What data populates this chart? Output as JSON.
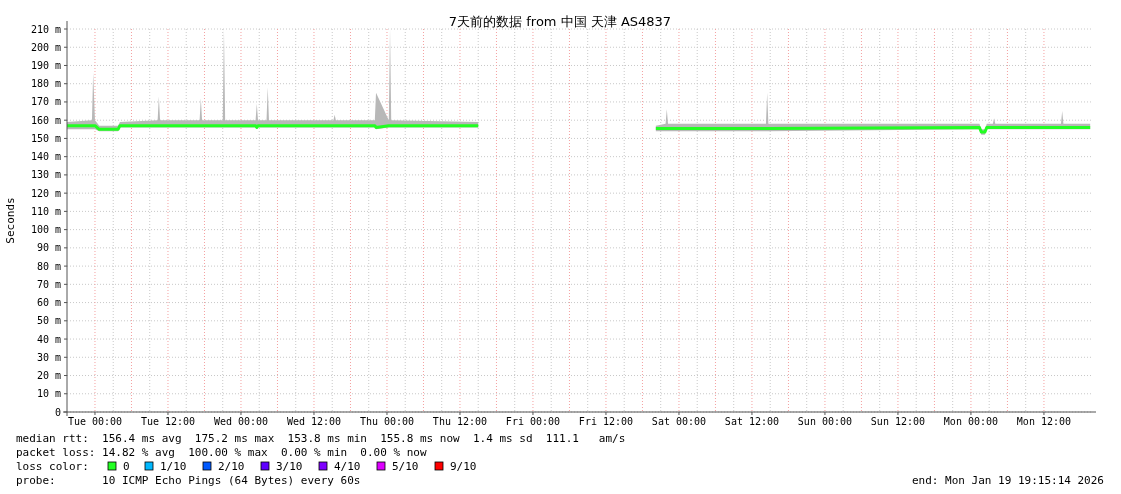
{
  "chart_data": {
    "type": "line",
    "title": "7天前的数据 from 中国 天津 AS4837",
    "ylabel": "Seconds",
    "x": [
      "2026-01-12T19:24",
      "2026-01-12T23:30",
      "2026-01-12T23:42",
      "2026-01-13T00:00",
      "2026-01-13T00:42",
      "2026-01-13T03:48",
      "2026-01-13T04:06",
      "2026-01-13T10:18",
      "2026-01-13T10:30",
      "2026-01-13T10:42",
      "2026-01-13T17:12",
      "2026-01-13T17:24",
      "2026-01-13T17:36",
      "2026-01-13T21:00",
      "2026-01-13T21:12",
      "2026-01-13T21:24",
      "2026-01-14T02:24",
      "2026-01-14T02:36",
      "2026-01-14T02:48",
      "2026-01-14T04:12",
      "2026-01-14T04:24",
      "2026-01-14T04:36",
      "2026-01-14T15:12",
      "2026-01-14T15:24",
      "2026-01-14T15:36",
      "2026-01-14T22:00",
      "2026-01-14T22:12",
      "2026-01-15T00:18",
      "2026-01-15T00:30",
      "2026-01-15T00:42",
      "2026-01-15T15:00",
      "2026-01-15T15:12",
      "2026-01-16T20:00",
      "2026-01-16T20:12",
      "2026-01-16T21:48",
      "2026-01-16T22:00",
      "2026-01-16T22:12",
      "2026-01-17T14:18",
      "2026-01-17T14:30",
      "2026-01-17T14:42",
      "2026-01-19T01:24",
      "2026-01-19T01:42",
      "2026-01-19T02:18",
      "2026-01-19T02:36",
      "2026-01-19T03:36",
      "2026-01-19T03:48",
      "2026-01-19T04:00",
      "2026-01-19T14:48",
      "2026-01-19T15:00",
      "2026-01-19T15:12",
      "2026-01-19T19:36"
    ],
    "series": [
      {
        "name": "0",
        "color": "#22ff22",
        "values": [
          157,
          157,
          157,
          157,
          155,
          155,
          157,
          157,
          157,
          157,
          157,
          157,
          157,
          157,
          157,
          157,
          157,
          156,
          157,
          157,
          157,
          157,
          157,
          157,
          157,
          157,
          156,
          157,
          157,
          157,
          157,
          null,
          null,
          155.5,
          155.5,
          155.5,
          155.5,
          155.5,
          155.5,
          155.5,
          156,
          153.5,
          153.5,
          156,
          156,
          156,
          156,
          156,
          156,
          156,
          156
        ],
        "lower": [
          155,
          155,
          155,
          155,
          154,
          154,
          156,
          156,
          156,
          156,
          156,
          156,
          156,
          156,
          156,
          156,
          156,
          155,
          156,
          156,
          156,
          156,
          156,
          156,
          156,
          156,
          155,
          156,
          156,
          156,
          156,
          null,
          null,
          154,
          154,
          154,
          154,
          154,
          154,
          154,
          155,
          152,
          152,
          155,
          155,
          155,
          155,
          155,
          155,
          155,
          155
        ],
        "upper": [
          159,
          160,
          186,
          160,
          157,
          157,
          159,
          160,
          173,
          160,
          160,
          172,
          160,
          160,
          210,
          160,
          160,
          169,
          160,
          160,
          178,
          160,
          160,
          163,
          160,
          160,
          175,
          160,
          210,
          160,
          159,
          null,
          null,
          157,
          158,
          166,
          158,
          158,
          175,
          158,
          158,
          155,
          155,
          158,
          158,
          161,
          158,
          158,
          165,
          158,
          158
        ]
      },
      {
        "name": "1/10",
        "color": "#00b8ff",
        "values": [
          null,
          null,
          null,
          null,
          null,
          null,
          null,
          null,
          null,
          null,
          null,
          null,
          null,
          null,
          null,
          null,
          null,
          null,
          null,
          null,
          null,
          null,
          null,
          null,
          null,
          null,
          null,
          null,
          null,
          null,
          null,
          null,
          null,
          null,
          null,
          null,
          null,
          null,
          null,
          null,
          null,
          null,
          null,
          null,
          null,
          null,
          null,
          null,
          null,
          null,
          null
        ]
      },
      {
        "name": "2/10",
        "color": "#0059ff",
        "values": [
          null,
          null,
          null,
          null,
          null,
          null,
          null,
          null,
          null,
          null,
          null,
          null,
          null,
          null,
          null,
          null,
          null,
          null,
          null,
          null,
          null,
          null,
          null,
          null,
          null,
          null,
          null,
          null,
          null,
          null,
          null,
          null,
          null,
          null,
          null,
          null,
          null,
          null,
          null,
          null,
          null,
          null,
          null,
          null,
          null,
          null,
          null,
          null,
          null,
          null,
          null
        ]
      },
      {
        "name": "3/10",
        "color": "#5e00ff",
        "values": [
          null,
          null,
          null,
          null,
          null,
          null,
          null,
          null,
          null,
          null,
          null,
          null,
          null,
          null,
          null,
          null,
          null,
          null,
          null,
          null,
          null,
          null,
          null,
          null,
          null,
          null,
          null,
          null,
          null,
          null,
          null,
          null,
          null,
          null,
          null,
          null,
          null,
          null,
          null,
          null,
          null,
          null,
          null,
          null,
          null,
          null,
          null,
          null,
          null,
          null,
          null
        ]
      },
      {
        "name": "4/10",
        "color": "#7e00ff",
        "values": [
          null,
          null,
          null,
          null,
          null,
          null,
          null,
          null,
          null,
          null,
          null,
          null,
          null,
          null,
          null,
          null,
          null,
          null,
          null,
          null,
          null,
          null,
          null,
          null,
          null,
          null,
          null,
          null,
          null,
          null,
          null,
          null,
          null,
          null,
          null,
          null,
          null,
          null,
          null,
          null,
          null,
          null,
          null,
          null,
          null,
          null,
          null,
          null,
          null,
          null,
          null
        ]
      },
      {
        "name": "5/10",
        "color": "#dd00ff",
        "values": [
          null,
          null,
          null,
          null,
          null,
          null,
          null,
          null,
          null,
          null,
          null,
          null,
          null,
          null,
          null,
          null,
          null,
          null,
          null,
          null,
          null,
          null,
          null,
          null,
          null,
          null,
          null,
          null,
          null,
          null,
          null,
          null,
          null,
          null,
          null,
          null,
          null,
          null,
          null,
          null,
          null,
          null,
          null,
          null,
          null,
          null,
          null,
          null,
          null,
          null,
          null
        ]
      },
      {
        "name": "9/10",
        "color": "#ff0000",
        "values": [
          null,
          null,
          null,
          null,
          null,
          null,
          null,
          null,
          null,
          null,
          null,
          null,
          null,
          null,
          null,
          null,
          null,
          null,
          null,
          null,
          null,
          null,
          null,
          null,
          null,
          null,
          null,
          null,
          null,
          null,
          null,
          null,
          null,
          null,
          null,
          null,
          null,
          null,
          null,
          null,
          null,
          null,
          null,
          null,
          null,
          null,
          null,
          null,
          null,
          null,
          null
        ]
      }
    ],
    "xlim": [
      "2026-01-12T19:24",
      "2026-01-19T19:54"
    ],
    "ylim": [
      0,
      210
    ],
    "xticks": [
      {
        "value": "2026-01-13T00:00",
        "label": "Tue 00:00"
      },
      {
        "value": "2026-01-13T12:00",
        "label": "Tue 12:00"
      },
      {
        "value": "2026-01-14T00:00",
        "label": "Wed 00:00"
      },
      {
        "value": "2026-01-14T12:00",
        "label": "Wed 12:00"
      },
      {
        "value": "2026-01-15T00:00",
        "label": "Thu 00:00"
      },
      {
        "value": "2026-01-15T12:00",
        "label": "Thu 12:00"
      },
      {
        "value": "2026-01-16T00:00",
        "label": "Fri 00:00"
      },
      {
        "value": "2026-01-16T12:00",
        "label": "Fri 12:00"
      },
      {
        "value": "2026-01-17T00:00",
        "label": "Sat 00:00"
      },
      {
        "value": "2026-01-17T12:00",
        "label": "Sat 12:00"
      },
      {
        "value": "2026-01-18T00:00",
        "label": "Sun 00:00"
      },
      {
        "value": "2026-01-18T12:00",
        "label": "Sun 12:00"
      },
      {
        "value": "2026-01-19T00:00",
        "label": "Mon 00:00"
      },
      {
        "value": "2026-01-19T12:00",
        "label": "Mon 12:00"
      }
    ],
    "yticks": [
      0,
      {
        "value": 10,
        "label": "10 m"
      },
      {
        "value": 20,
        "label": "20 m"
      },
      {
        "value": 30,
        "label": "30 m"
      },
      {
        "value": 40,
        "label": "40 m"
      },
      {
        "value": 50,
        "label": "50 m"
      },
      {
        "value": 60,
        "label": "60 m"
      },
      {
        "value": 70,
        "label": "70 m"
      },
      {
        "value": 80,
        "label": "80 m"
      },
      {
        "value": 90,
        "label": "90 m"
      },
      {
        "value": 100,
        "label": "100 m"
      },
      {
        "value": 110,
        "label": "110 m"
      },
      {
        "value": 120,
        "label": "120 m"
      },
      {
        "value": 130,
        "label": "130 m"
      },
      {
        "value": 140,
        "label": "140 m"
      },
      {
        "value": 150,
        "label": "150 m"
      },
      {
        "value": 160,
        "label": "160 m"
      },
      {
        "value": 170,
        "label": "170 m"
      },
      {
        "value": 180,
        "label": "180 m"
      },
      {
        "value": 190,
        "label": "190 m"
      },
      {
        "value": 200,
        "label": "200 m"
      },
      {
        "value": 210,
        "label": "210 m"
      }
    ],
    "grid": true,
    "legend": "bottom",
    "marker": "none",
    "line_style": "solid",
    "annotations": [
      "median rtt:  156.4 ms avg  175.2 ms max  153.8 ms min  155.8 ms now  1.4 ms sd  111.1   am/s",
      "packet loss: 14.82 % avg  100.00 % max  0.00 % min  0.00 % now",
      "loss color:",
      "probe:       10 ICMP Echo Pings (64 Bytes) every 60s",
      "end: Mon Jan 19 19:15:14 2026"
    ]
  }
}
